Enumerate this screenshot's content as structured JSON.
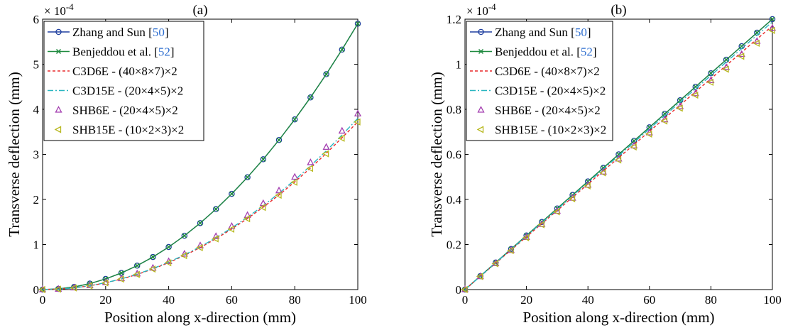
{
  "colors": {
    "zhang": "#1f3f9f",
    "benjeddou": "#1f8a3f",
    "c3d6e": "#e8282a",
    "c3d15e": "#29b6c0",
    "shb6e": "#a43fb0",
    "shb15e": "#b8b820",
    "ref": "#2f6fd0"
  },
  "chart_data": [
    {
      "type": "line",
      "title": "(a)",
      "xlabel": "Position along x-direction (mm)",
      "ylabel": "Transverse deflection (mm)",
      "y_multiplier": "× 10",
      "y_multiplier_exp": "-4",
      "xlim": [
        0,
        100
      ],
      "ylim": [
        0,
        6
      ],
      "x_ticks": [
        0,
        20,
        40,
        60,
        80,
        100
      ],
      "y_ticks": [
        0,
        1,
        2,
        3,
        4,
        5,
        6
      ],
      "x": [
        0,
        5,
        10,
        15,
        20,
        25,
        30,
        35,
        40,
        45,
        50,
        55,
        60,
        65,
        70,
        75,
        80,
        85,
        90,
        95,
        100
      ],
      "legend_placement": "top-left",
      "series": [
        {
          "key": "zhang",
          "name": "Zhang and Sun [",
          "ref": "50",
          "name_end": "]",
          "marker": "circle",
          "line": "solid",
          "values": [
            0,
            0.015,
            0.059,
            0.133,
            0.236,
            0.369,
            0.531,
            0.723,
            0.944,
            1.195,
            1.475,
            1.785,
            2.124,
            2.493,
            2.891,
            3.319,
            3.776,
            4.263,
            4.779,
            5.325,
            5.9
          ]
        },
        {
          "key": "benjeddou",
          "name": "Benjeddou et al. [",
          "ref": "52",
          "name_end": "]",
          "marker": "x",
          "line": "solid",
          "values": [
            0,
            0.015,
            0.059,
            0.133,
            0.236,
            0.369,
            0.531,
            0.723,
            0.944,
            1.195,
            1.475,
            1.785,
            2.124,
            2.493,
            2.891,
            3.319,
            3.776,
            4.263,
            4.779,
            5.325,
            5.9
          ]
        },
        {
          "key": "c3d6e",
          "name": "C3D6E - (40×8×7)×2",
          "marker": "none",
          "line": "dashed",
          "values": [
            0,
            0.009,
            0.037,
            0.084,
            0.15,
            0.233,
            0.336,
            0.457,
            0.597,
            0.756,
            0.933,
            1.129,
            1.344,
            1.577,
            1.829,
            2.1,
            2.389,
            2.697,
            3.023,
            3.369,
            3.72
          ]
        },
        {
          "key": "c3d15e",
          "name": "C3D15E - (20×4×5)×2",
          "marker": "none",
          "line": "dashdot",
          "values": [
            0,
            0.009,
            0.038,
            0.086,
            0.152,
            0.238,
            0.342,
            0.466,
            0.608,
            0.77,
            0.95,
            1.15,
            1.368,
            1.606,
            1.862,
            2.138,
            2.432,
            2.746,
            3.078,
            3.43,
            3.8
          ]
        },
        {
          "key": "shb6e",
          "name": "SHB6E - (20×4×5)×2",
          "marker": "triangle-up",
          "line": "none",
          "values": [
            0,
            0.01,
            0.039,
            0.088,
            0.156,
            0.244,
            0.351,
            0.478,
            0.624,
            0.79,
            0.975,
            1.18,
            1.404,
            1.648,
            1.911,
            2.194,
            2.496,
            2.818,
            3.159,
            3.519,
            3.9
          ]
        },
        {
          "key": "shb15e",
          "name": "SHB15E - (10×2×3)×2",
          "marker": "triangle-left",
          "line": "none",
          "values": [
            0,
            0.009,
            0.037,
            0.084,
            0.149,
            0.233,
            0.335,
            0.456,
            0.596,
            0.754,
            0.93,
            1.126,
            1.34,
            1.572,
            1.823,
            2.093,
            2.381,
            2.688,
            3.014,
            3.358,
            3.72
          ]
        }
      ]
    },
    {
      "type": "line",
      "title": "(b)",
      "xlabel": "Position along x-direction (mm)",
      "ylabel": "Transverse deflection (mm)",
      "y_multiplier": "× 10",
      "y_multiplier_exp": "-4",
      "xlim": [
        0,
        100
      ],
      "ylim": [
        0,
        1.2
      ],
      "x_ticks": [
        0,
        20,
        40,
        60,
        80,
        100
      ],
      "y_ticks": [
        0,
        0.2,
        0.4,
        0.6,
        0.8,
        1,
        1.2
      ],
      "x": [
        0,
        5,
        10,
        15,
        20,
        25,
        30,
        35,
        40,
        45,
        50,
        55,
        60,
        65,
        70,
        75,
        80,
        85,
        90,
        95,
        100
      ],
      "legend_placement": "top-left",
      "series": [
        {
          "key": "zhang",
          "name": "Zhang and Sun [",
          "ref": "50",
          "name_end": "]",
          "marker": "circle",
          "line": "solid",
          "values": [
            0,
            0.06,
            0.12,
            0.18,
            0.24,
            0.3,
            0.36,
            0.42,
            0.48,
            0.54,
            0.6,
            0.66,
            0.72,
            0.78,
            0.84,
            0.9,
            0.96,
            1.02,
            1.08,
            1.14,
            1.2
          ]
        },
        {
          "key": "benjeddou",
          "name": "Benjeddou et al. [",
          "ref": "52",
          "name_end": "]",
          "marker": "x",
          "line": "solid",
          "values": [
            0,
            0.06,
            0.12,
            0.18,
            0.24,
            0.3,
            0.36,
            0.42,
            0.48,
            0.54,
            0.6,
            0.66,
            0.72,
            0.78,
            0.84,
            0.9,
            0.96,
            1.02,
            1.08,
            1.14,
            1.2
          ]
        },
        {
          "key": "c3d6e",
          "name": "C3D6E - (40×8×7)×2",
          "marker": "none",
          "line": "dashed",
          "values": [
            0,
            0.059,
            0.117,
            0.176,
            0.234,
            0.293,
            0.351,
            0.41,
            0.468,
            0.527,
            0.585,
            0.644,
            0.702,
            0.761,
            0.819,
            0.878,
            0.936,
            0.995,
            1.053,
            1.112,
            1.17
          ]
        },
        {
          "key": "c3d15e",
          "name": "C3D15E - (20×4×5)×2",
          "marker": "none",
          "line": "dashdot",
          "values": [
            0,
            0.059,
            0.119,
            0.178,
            0.238,
            0.297,
            0.356,
            0.416,
            0.475,
            0.535,
            0.594,
            0.653,
            0.713,
            0.772,
            0.832,
            0.891,
            0.95,
            1.01,
            1.069,
            1.129,
            1.188
          ]
        },
        {
          "key": "shb6e",
          "name": "SHB6E - (20×4×5)×2",
          "marker": "triangle-up",
          "line": "none",
          "values": [
            0,
            0.058,
            0.116,
            0.174,
            0.232,
            0.29,
            0.348,
            0.406,
            0.464,
            0.522,
            0.58,
            0.638,
            0.696,
            0.754,
            0.812,
            0.87,
            0.928,
            0.986,
            1.044,
            1.102,
            1.16
          ]
        },
        {
          "key": "shb15e",
          "name": "SHB15E - (10×2×3)×2",
          "marker": "triangle-left",
          "line": "none",
          "values": [
            0,
            0.058,
            0.115,
            0.173,
            0.23,
            0.288,
            0.345,
            0.403,
            0.46,
            0.518,
            0.575,
            0.633,
            0.69,
            0.748,
            0.805,
            0.863,
            0.92,
            0.978,
            1.035,
            1.093,
            1.15
          ]
        }
      ]
    }
  ]
}
